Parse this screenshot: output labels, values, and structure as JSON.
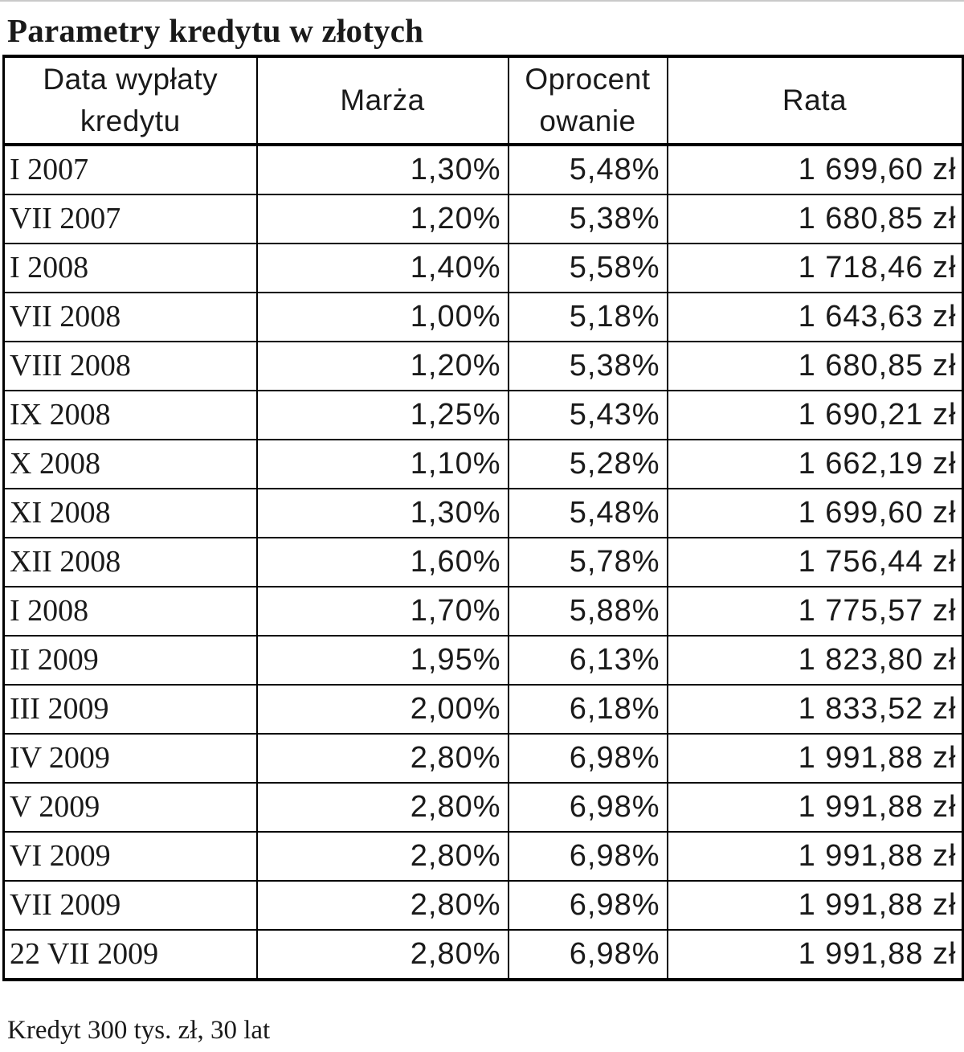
{
  "title": "Parametry kredytu w złotych",
  "table": {
    "headers": [
      {
        "line1": "Data wypłaty",
        "line2": "kredytu"
      },
      {
        "line1": "Marża",
        "line2": ""
      },
      {
        "line1": "Oprocent",
        "line2": "owanie"
      },
      {
        "line1": "Rata",
        "line2": ""
      }
    ],
    "rows": [
      [
        "I 2007",
        "1,30%",
        "5,48%",
        "1 699,60 zł"
      ],
      [
        "VII 2007",
        "1,20%",
        "5,38%",
        "1 680,85 zł"
      ],
      [
        "I 2008",
        "1,40%",
        "5,58%",
        "1 718,46 zł"
      ],
      [
        "VII 2008",
        "1,00%",
        "5,18%",
        "1 643,63 zł"
      ],
      [
        "VIII 2008",
        "1,20%",
        "5,38%",
        "1 680,85 zł"
      ],
      [
        "IX 2008",
        "1,25%",
        "5,43%",
        "1 690,21 zł"
      ],
      [
        "X 2008",
        "1,10%",
        "5,28%",
        "1 662,19 zł"
      ],
      [
        "XI 2008",
        "1,30%",
        "5,48%",
        "1 699,60 zł"
      ],
      [
        "XII 2008",
        "1,60%",
        "5,78%",
        "1 756,44 zł"
      ],
      [
        "I 2008",
        "1,70%",
        "5,88%",
        "1 775,57 zł"
      ],
      [
        "II 2009",
        "1,95%",
        "6,13%",
        "1 823,80 zł"
      ],
      [
        "III 2009",
        "2,00%",
        "6,18%",
        "1 833,52 zł"
      ],
      [
        "IV 2009",
        "2,80%",
        "6,98%",
        "1 991,88 zł"
      ],
      [
        "V 2009",
        "2,80%",
        "6,98%",
        "1 991,88 zł"
      ],
      [
        "VI 2009",
        "2,80%",
        "6,98%",
        "1 991,88 zł"
      ],
      [
        "VII 2009",
        "2,80%",
        "6,98%",
        "1 991,88 zł"
      ],
      [
        "22 VII 2009",
        "2,80%",
        "6,98%",
        "1 991,88 zł"
      ]
    ]
  },
  "footer": "Kredyt 300 tys. zł, 30 lat"
}
